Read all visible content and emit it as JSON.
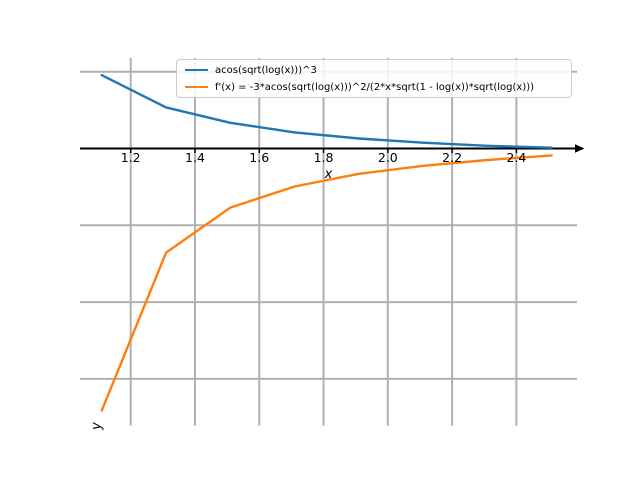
{
  "chart_data": {
    "type": "line",
    "title": "",
    "xlabel": "x",
    "ylabel": "y",
    "x": [
      1.11,
      1.31,
      1.51,
      1.71,
      1.91,
      2.11,
      2.31,
      2.51
    ],
    "series": [
      {
        "name": "acos(sqrt(log(x)))^3",
        "color": "#1f77b4",
        "values": [
          1.91,
          1.07,
          0.67,
          0.42,
          0.26,
          0.15,
          0.07,
          0.02
        ]
      },
      {
        "name": "f'(x) = -3*acos(sqrt(log(x)))^2/(2*x*sqrt(1 - log(x))*sqrt(log(x)))",
        "color": "#ff7f0e",
        "values": [
          -6.82,
          -2.71,
          -1.54,
          -0.99,
          -0.66,
          -0.45,
          -0.3,
          -0.18
        ]
      }
    ],
    "x_ticks": [
      1.2,
      1.4,
      1.6,
      1.8,
      2.0,
      2.2,
      2.4
    ],
    "x_tick_labels": [
      "1.2",
      "1.4",
      "1.6",
      "1.8",
      "2.0",
      "2.2",
      "2.4"
    ],
    "y_gridline_values": [
      2,
      -2,
      -4,
      -6
    ],
    "xlim": [
      1.04,
      2.59
    ],
    "ylim": [
      -7.2,
      2.36
    ],
    "grid": true,
    "legend_position": "upper center",
    "grid_color": "#b0b0b0",
    "axis_color": "#000000",
    "background_color": "#ffffff"
  }
}
